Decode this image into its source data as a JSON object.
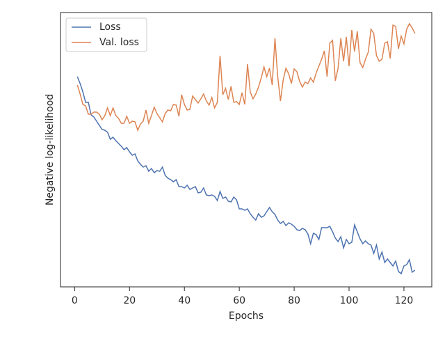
{
  "chart_data": {
    "type": "line",
    "xlabel": "Epochs",
    "ylabel": "Negative log-likelihood",
    "x": [
      1,
      2,
      3,
      4,
      5,
      6,
      7,
      8,
      9,
      10,
      11,
      12,
      13,
      14,
      15,
      16,
      17,
      18,
      19,
      20,
      21,
      22,
      23,
      24,
      25,
      26,
      27,
      28,
      29,
      30,
      31,
      32,
      33,
      34,
      35,
      36,
      37,
      38,
      39,
      40,
      41,
      42,
      43,
      44,
      45,
      46,
      47,
      48,
      49,
      50,
      51,
      52,
      53,
      54,
      55,
      56,
      57,
      58,
      59,
      60,
      61,
      62,
      63,
      64,
      65,
      66,
      67,
      68,
      69,
      70,
      71,
      72,
      73,
      74,
      75,
      76,
      77,
      78,
      79,
      80,
      81,
      82,
      83,
      84,
      85,
      86,
      87,
      88,
      89,
      90,
      91,
      92,
      93,
      94,
      95,
      96,
      97,
      98,
      99,
      100,
      101,
      102,
      103,
      104,
      105,
      106,
      107,
      108,
      109,
      110,
      111,
      112,
      113,
      114,
      115,
      116,
      117,
      118,
      119,
      120,
      121,
      122,
      123,
      124
    ],
    "series": [
      {
        "name": "Loss",
        "color": "#4c72b0",
        "values": [
          302,
          292,
          280,
          265,
          265,
          247,
          244,
          238,
          232,
          226,
          225,
          222,
          212,
          215,
          210,
          206,
          202,
          197,
          200,
          194,
          189,
          191,
          181,
          176,
          172,
          174,
          166,
          170,
          164,
          167,
          166,
          172,
          160,
          156,
          154,
          151,
          154,
          144,
          144,
          142,
          146,
          140,
          142,
          144,
          135,
          136,
          142,
          132,
          131,
          132,
          130,
          124,
          137,
          127,
          129,
          123,
          122,
          129,
          125,
          112,
          112,
          110,
          112,
          105,
          100,
          96,
          105,
          100,
          102,
          108,
          114,
          108,
          104,
          96,
          91,
          94,
          88,
          92,
          90,
          87,
          82,
          81,
          84,
          82,
          76,
          62,
          77,
          75,
          68,
          85,
          85,
          85,
          87,
          79,
          70,
          65,
          72,
          56,
          68,
          62,
          64,
          89,
          79,
          69,
          62,
          66,
          62,
          60,
          48,
          60,
          40,
          50,
          35,
          40,
          35,
          30,
          37,
          22,
          19,
          30,
          32,
          39,
          21,
          24
        ]
      },
      {
        "name": "Val. loss",
        "color": "#dd8452",
        "values": [
          290,
          277,
          262,
          260,
          248,
          248,
          251,
          251,
          248,
          240,
          246,
          257,
          246,
          257,
          246,
          242,
          235,
          235,
          245,
          235,
          238,
          237,
          225,
          234,
          238,
          254,
          235,
          246,
          258,
          249,
          243,
          237,
          249,
          254,
          253,
          262,
          261,
          245,
          276,
          262,
          254,
          255,
          274,
          269,
          264,
          270,
          277,
          267,
          261,
          272,
          257,
          265,
          332,
          276,
          285,
          269,
          288,
          265,
          266,
          262,
          279,
          262,
          320,
          280,
          270,
          277,
          287,
          300,
          316,
          302,
          314,
          290,
          357,
          302,
          267,
          297,
          314,
          306,
          292,
          313,
          309,
          295,
          287,
          294,
          292,
          300,
          294,
          307,
          317,
          327,
          339,
          302,
          350,
          354,
          296,
          314,
          357,
          324,
          359,
          317,
          369,
          338,
          367,
          322,
          315,
          327,
          337,
          370,
          364,
          332,
          324,
          327,
          350,
          352,
          328,
          376,
          374,
          342,
          360,
          349,
          370,
          378,
          372,
          364
        ]
      }
    ],
    "xlim": [
      -5.15,
      130.15
    ],
    "ylim": [
      0,
      394
    ],
    "xticks": [
      0,
      20,
      40,
      60,
      80,
      100,
      120
    ],
    "legend": "upper left"
  }
}
